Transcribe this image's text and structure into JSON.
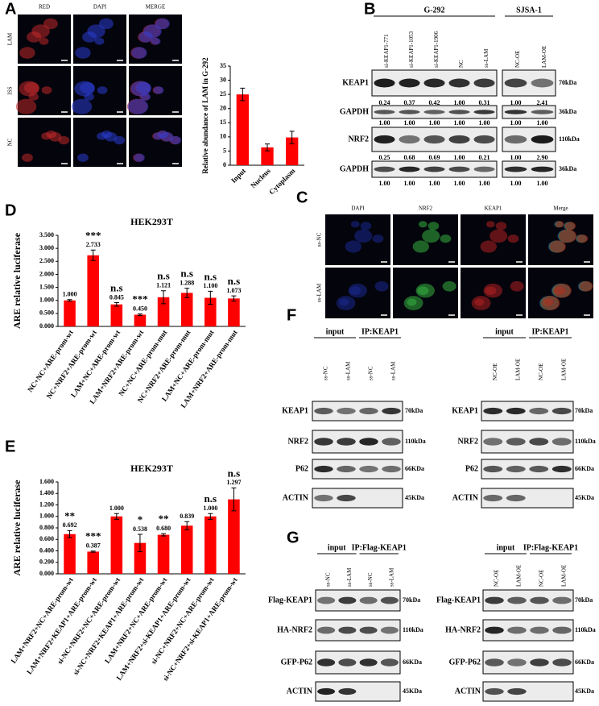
{
  "panel_labels": [
    "A",
    "B",
    "C",
    "D",
    "E",
    "F",
    "G"
  ],
  "chart_data": [
    {
      "type": "bar",
      "ylabel": "Relative abundance of LAM in G-292",
      "categories": [
        "Input",
        "Nucleus",
        "Cytoplasm"
      ],
      "values": [
        25,
        6.3,
        9.8
      ],
      "errors": [
        2.2,
        1.2,
        2.2
      ],
      "color": "#ff0000",
      "ylim": [
        0,
        35
      ],
      "yticks": [
        0,
        5,
        10,
        15,
        20,
        25,
        30,
        35
      ]
    },
    {
      "type": "bar",
      "title": "HEK293T",
      "ylabel": "ARE relative luciferase",
      "categories": [
        "NC+NC+ARE-prom-wt",
        "NC+NRF2+ARE-prom-wt",
        "LAM+NC+ARE-prom-wt",
        "LAM+NRF2+ARE-prom-wt",
        "NC+NC+ARE-prom-mut",
        "NC+NRF2+ARE-prom-mut",
        "LAM+NC+ARE-prom-mut",
        "LAM+NRF2+ARE-prom-mut"
      ],
      "values": [
        1,
        2.733,
        0.845,
        0.45,
        1.121,
        1.288,
        1.1,
        1.073
      ],
      "value_labels": [
        "1.000",
        "2.733",
        "0.845",
        "0.450",
        "1.121",
        "1.288",
        "1.100",
        "1.073"
      ],
      "errors": [
        0.03,
        0.2,
        0.07,
        0.03,
        0.25,
        0.18,
        0.25,
        0.1
      ],
      "significance": [
        null,
        "***",
        "n.s",
        "***",
        "n.s",
        "n.s",
        "n.s",
        "n.s"
      ],
      "color": "#ff0000",
      "ylim": [
        0,
        3.5
      ],
      "yticks": [
        {
          "value": 0,
          "label": "0.000"
        },
        {
          "value": 0.5,
          "label": "0.500"
        },
        {
          "value": 1,
          "label": "1.000"
        },
        {
          "value": 1.5,
          "label": "1.500"
        },
        {
          "value": 2,
          "label": "2.000"
        },
        {
          "value": 2.5,
          "label": "2.500"
        },
        {
          "value": 3,
          "label": "3.000"
        },
        {
          "value": 3.5,
          "label": "3.500"
        }
      ]
    },
    {
      "type": "bar",
      "title": "HEK293T",
      "ylabel": "ARE relative luciferase",
      "categories": [
        "LAM+NRF2+NC+ARE-prom-wt",
        "LAM+NRF2+KEAP1+ARE-prom-wt",
        "si-NC+NRF2+NC+ARE-prom-wt",
        "si-NC+NRF2+KEAP1+ARE-prom-wt",
        "LAM+NRF2+NC+ARE-prom-wt",
        "LAM+NRF2+si-KEAP1+ARE-prom-wt",
        "si-NC+NRF2+NC+ARE-prom-wt",
        "si-NC+NRF2+si-KEAP1+ARE-prom-wt"
      ],
      "values": [
        0.692,
        0.387,
        1,
        0.538,
        0.68,
        0.839,
        1,
        1.297
      ],
      "value_labels": [
        "0.692",
        "0.387",
        "1.000",
        "0.538",
        "0.680",
        "0.839",
        "1.000",
        "1.297"
      ],
      "errors": [
        0.06,
        0.01,
        0.05,
        0.15,
        0.02,
        0.07,
        0.05,
        0.2
      ],
      "significance": [
        "**",
        "***",
        null,
        "*",
        "**",
        null,
        "n.s",
        "n.s"
      ],
      "color": "#ff0000",
      "ylim": [
        0,
        1.6
      ],
      "yticks": [
        {
          "value": 0,
          "label": "0.000"
        },
        {
          "value": 0.2,
          "label": "0.200"
        },
        {
          "value": 0.4,
          "label": "0.400"
        },
        {
          "value": 0.6,
          "label": "0.600"
        },
        {
          "value": 0.8,
          "label": "0.800"
        },
        {
          "value": 1,
          "label": "1.000"
        },
        {
          "value": 1.2,
          "label": "1.200"
        },
        {
          "value": 1.4,
          "label": "1.400"
        },
        {
          "value": 1.6,
          "label": "1.600"
        }
      ]
    }
  ],
  "panel_a": {
    "columns": [
      "RED",
      "DAPI",
      "MERGE"
    ],
    "rows": [
      "LAM",
      "ISS",
      "NC"
    ]
  },
  "panel_b": {
    "groups": [
      "G-292",
      "SJSA-1"
    ],
    "lanes": [
      "si-KEAP1-771",
      "si-KEAP1-1053",
      "si-KEAP1-1906",
      "NC",
      "ss-LAM",
      "NC-OE",
      "LAM-OE"
    ],
    "blots": [
      {
        "label": "KEAP1",
        "size": "70kDa",
        "quant": [
          "0.24",
          "0.37",
          "0.42",
          "1.00",
          "0.31",
          "1.00",
          "2.41"
        ]
      },
      {
        "label": "GAPDH",
        "size": "36kDa",
        "quant": [
          "1.00",
          "1.00",
          "1.00",
          "1.00",
          "1.00",
          "1.00",
          "1.00"
        ]
      },
      {
        "label": "NRF2",
        "size": "110kDa",
        "quant": [
          "0.25",
          "0.68",
          "0.69",
          "1.00",
          "0.21",
          "1.00",
          "2.90"
        ]
      },
      {
        "label": "GAPDH",
        "size": "36kDa",
        "quant": [
          "1.00",
          "1.00",
          "1.00",
          "1.00",
          "1.00",
          "1.00",
          "1.00"
        ]
      }
    ]
  },
  "panel_c": {
    "columns": [
      "DAPI",
      "NRF2",
      "KEAP1",
      "Merge"
    ],
    "rows": [
      "ss-NC",
      "ss-LAM"
    ]
  },
  "panel_f": [
    {
      "groups": [
        "input",
        "IP:KEAP1"
      ],
      "lanes": [
        "ss-NC",
        "ss-LAM",
        "ss-NC",
        "ss-LAM"
      ],
      "blots": [
        {
          "label": "KEAP1",
          "size": "70kDa"
        },
        {
          "label": "NRF2",
          "size": "110kDa"
        },
        {
          "label": "P62",
          "size": "66KDa"
        },
        {
          "label": "ACTIN",
          "size": "45KDa"
        }
      ]
    },
    {
      "groups": [
        "input",
        "IP:KEAP1"
      ],
      "lanes": [
        "NC-OE",
        "LAM-OE",
        "NC-OE",
        "LAM-OE"
      ],
      "blots": [
        {
          "label": "KEAP1",
          "size": "70kDa"
        },
        {
          "label": "NRF2",
          "size": "110kDa"
        },
        {
          "label": "P62",
          "size": "66KDa"
        },
        {
          "label": "ACTIN",
          "size": "45KDa"
        }
      ]
    }
  ],
  "panel_g": [
    {
      "groups": [
        "input",
        "IP:Flag-KEAP1"
      ],
      "lanes": [
        "ss-NC",
        "ss-LAM",
        "ss-NC",
        "ss-LAM"
      ],
      "blots": [
        {
          "label": "Flag-KEAP1",
          "size": "70kDa"
        },
        {
          "label": "HA-NRF2",
          "size": "110kDa"
        },
        {
          "label": "GFP-P62",
          "size": "66KDa"
        },
        {
          "label": "ACTIN",
          "size": "45KDa"
        }
      ]
    },
    {
      "groups": [
        "input",
        "IP:Flag-KEAP1"
      ],
      "lanes": [
        "NC-OE",
        "LAM-OE",
        "NC-OE",
        "LAM-OE"
      ],
      "blots": [
        {
          "label": "Flag-KEAP1",
          "size": "70kDa"
        },
        {
          "label": "HA-NRF2",
          "size": "110kDa"
        },
        {
          "label": "GFP-P62",
          "size": "66KDa"
        },
        {
          "label": "ACTIN",
          "size": "45KDa"
        }
      ]
    }
  ]
}
